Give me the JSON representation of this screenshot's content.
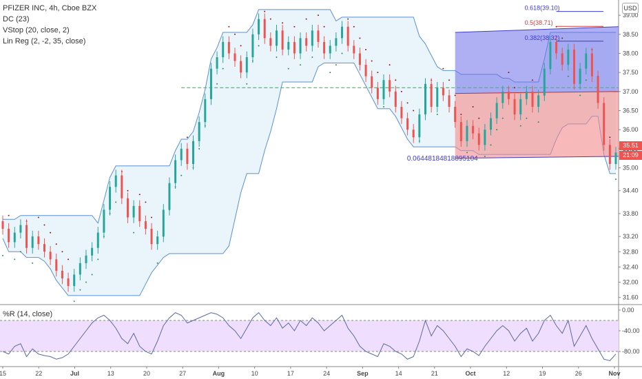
{
  "legend": {
    "symbol": "PFIZER INC, 4h, Cboe BZX",
    "dc": "DC (23)",
    "vstop": "VStop (20, close, 2)",
    "linreg": "Lin Reg (2, -2, 35, close)"
  },
  "oscillator": {
    "label": "%R (14, close)"
  },
  "currency_button": "USD",
  "tags": {
    "last_price": "35.51",
    "countdown": "21:09"
  },
  "fib_labels": {
    "f618": "0.618(39.10)",
    "f5": "0.5(38.71)",
    "f382": "0.382(38.32)"
  },
  "linreg_value": "0.06448184818895104",
  "colors": {
    "up": "#26a69a",
    "down": "#ef5350",
    "dc_line": "#5b8fd6",
    "dc_fill": "#eaf4fb",
    "vstop_up": "#2e8b57",
    "vstop_down": "#8b1a1a",
    "upper_channel": "#6d6dea",
    "lower_channel": "#f28b8b",
    "percent_r": "#5a6a9a",
    "percent_r_band": "#f0deff"
  },
  "chart_data": [
    {
      "type": "candlestick",
      "title": "PFIZER INC, 4h, Cboe BZX",
      "ylim": [
        31.45,
        39.4
      ],
      "y_ticks": [
        "39.00",
        "38.50",
        "38.00",
        "37.50",
        "37.00",
        "36.50",
        "36.00",
        "35.50",
        "35.00",
        "34.40",
        "33.80",
        "33.20",
        "32.80",
        "32.40",
        "32.00",
        "31.60"
      ],
      "x_ticks": [
        "15",
        "22",
        "Jul",
        "13",
        "20",
        "27",
        "Aug",
        "10",
        "17",
        "24",
        "Sep",
        "14",
        "21",
        "Oct",
        "12",
        "19",
        "26",
        "Nov"
      ],
      "close": [
        33.4,
        33.05,
        33.3,
        33.5,
        32.9,
        33.2,
        33.0,
        32.8,
        32.6,
        32.3,
        32.1,
        31.9,
        32.2,
        32.5,
        32.7,
        32.9,
        33.3,
        33.9,
        34.5,
        34.8,
        34.2,
        33.7,
        34.0,
        33.6,
        33.4,
        33.0,
        33.2,
        33.9,
        34.6,
        35.2,
        35.5,
        35.1,
        35.7,
        36.2,
        36.8,
        37.6,
        37.9,
        38.3,
        38.0,
        37.8,
        37.5,
        37.9,
        38.5,
        38.9,
        38.4,
        38.2,
        38.6,
        38.1,
        38.3,
        38.0,
        38.4,
        38.2,
        38.6,
        38.3,
        38.0,
        38.2,
        38.4,
        38.7,
        38.2,
        38.0,
        37.7,
        37.4,
        37.1,
        36.8,
        37.3,
        37.0,
        36.6,
        36.3,
        36.0,
        35.8,
        36.4,
        37.2,
        36.6,
        37.1,
        36.9,
        36.6,
        36.2,
        35.7,
        36.1,
        35.9,
        35.6,
        36.0,
        36.3,
        36.7,
        37.0,
        36.8,
        36.4,
        36.8,
        37.0,
        36.6,
        36.9,
        37.6,
        38.3,
        38.0,
        37.7,
        38.1,
        37.2,
        37.6,
        38.0,
        37.4,
        36.7,
        35.6,
        35.1,
        35.4
      ],
      "annotations": {
        "fibonacci": [
          {
            "level": "0.618",
            "price": 39.1
          },
          {
            "level": "0.5",
            "price": 38.71
          },
          {
            "level": "0.382",
            "price": 38.32
          }
        ],
        "linreg_label": "0.06448184818895104",
        "last_price": 35.51
      }
    },
    {
      "type": "line",
      "title": "%R (14, close)",
      "ylim": [
        -100,
        0
      ],
      "y_ticks": [
        "0.00",
        "-40.00",
        "-80.00"
      ],
      "bands": [
        -20,
        -80
      ],
      "values": [
        -80,
        -85,
        -70,
        -65,
        -90,
        -75,
        -85,
        -88,
        -90,
        -95,
        -92,
        -85,
        -70,
        -55,
        -40,
        -25,
        -15,
        -10,
        -20,
        -35,
        -55,
        -65,
        -45,
        -70,
        -80,
        -85,
        -60,
        -30,
        -15,
        -5,
        -10,
        -25,
        -20,
        -15,
        -10,
        -5,
        -8,
        -15,
        -30,
        -40,
        -55,
        -35,
        -15,
        -5,
        -20,
        -30,
        -15,
        -35,
        -25,
        -40,
        -20,
        -30,
        -15,
        -25,
        -40,
        -30,
        -20,
        -10,
        -35,
        -50,
        -70,
        -80,
        -85,
        -90,
        -65,
        -70,
        -80,
        -85,
        -95,
        -90,
        -60,
        -20,
        -50,
        -30,
        -40,
        -55,
        -70,
        -90,
        -75,
        -80,
        -88,
        -70,
        -55,
        -40,
        -30,
        -40,
        -60,
        -45,
        -35,
        -60,
        -45,
        -20,
        -10,
        -30,
        -45,
        -20,
        -70,
        -50,
        -30,
        -55,
        -75,
        -95,
        -98,
        -85
      ]
    }
  ]
}
